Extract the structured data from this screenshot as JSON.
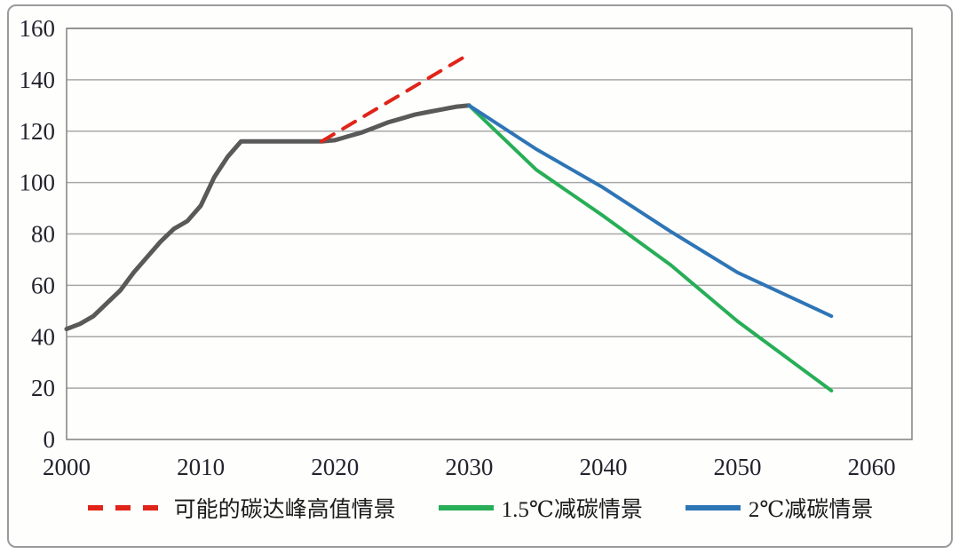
{
  "chart_data": {
    "type": "line",
    "grid": "horizontal",
    "legend_position": "bottom",
    "x_axis": {
      "min": 2000,
      "max": 2063,
      "ticks": [
        2000,
        2010,
        2020,
        2030,
        2040,
        2050,
        2060
      ]
    },
    "y_axis": {
      "min": 0,
      "max": 160,
      "ticks": [
        0,
        20,
        40,
        60,
        80,
        100,
        120,
        140,
        160
      ]
    },
    "series": [
      {
        "id": "historical-emissions",
        "color": "#595959",
        "width": 5,
        "dashed": false,
        "in_legend": false,
        "points": [
          [
            2000,
            43
          ],
          [
            2001,
            45
          ],
          [
            2002,
            48
          ],
          [
            2003,
            53
          ],
          [
            2004,
            58
          ],
          [
            2005,
            65
          ],
          [
            2006,
            71
          ],
          [
            2007,
            77
          ],
          [
            2008,
            82
          ],
          [
            2009,
            85
          ],
          [
            2010,
            91
          ],
          [
            2011,
            102
          ],
          [
            2012,
            110
          ],
          [
            2013,
            116
          ],
          [
            2014,
            116
          ],
          [
            2015,
            116
          ],
          [
            2016,
            116
          ],
          [
            2017,
            116
          ],
          [
            2018,
            116
          ],
          [
            2019,
            116
          ],
          [
            2020,
            116.5
          ],
          [
            2021,
            118
          ],
          [
            2022,
            119.5
          ],
          [
            2023,
            121.5
          ],
          [
            2024,
            123.5
          ],
          [
            2025,
            125
          ],
          [
            2026,
            126.5
          ],
          [
            2027,
            127.5
          ],
          [
            2028,
            128.5
          ],
          [
            2029,
            129.5
          ],
          [
            2030,
            130
          ]
        ]
      },
      {
        "id": "peak-high-scenario",
        "label": "可能的碳达峰高值情景",
        "color": "#e02419",
        "width": 4,
        "dashed": true,
        "in_legend": true,
        "points": [
          [
            2019,
            116
          ],
          [
            2030,
            150
          ]
        ]
      },
      {
        "id": "scenario-1-5c",
        "label": "1.5℃减碳情景",
        "color": "#27ae57",
        "width": 4,
        "dashed": false,
        "in_legend": true,
        "points": [
          [
            2030,
            130
          ],
          [
            2035,
            105
          ],
          [
            2040,
            87
          ],
          [
            2045,
            68
          ],
          [
            2050,
            46
          ],
          [
            2057,
            19
          ]
        ]
      },
      {
        "id": "scenario-2c",
        "label": "2℃减碳情景",
        "color": "#2e75b6",
        "width": 4,
        "dashed": false,
        "in_legend": true,
        "points": [
          [
            2030,
            130
          ],
          [
            2035,
            113
          ],
          [
            2040,
            98
          ],
          [
            2045,
            81
          ],
          [
            2050,
            65
          ],
          [
            2057,
            48
          ]
        ]
      }
    ],
    "legend": [
      {
        "label": "可能的碳达峰高值情景",
        "color": "#e02419",
        "dash": true
      },
      {
        "label": "1.5℃减碳情景",
        "color": "#27ae57",
        "dash": false
      },
      {
        "label": "2℃减碳情景",
        "color": "#2e75b6",
        "dash": false
      }
    ],
    "colors": {
      "grid": "#a8a8a8",
      "plot_border": "#808080",
      "tick_text": "#23232e",
      "frame_border": "#9b9b9b",
      "background": "#fefefd"
    }
  }
}
